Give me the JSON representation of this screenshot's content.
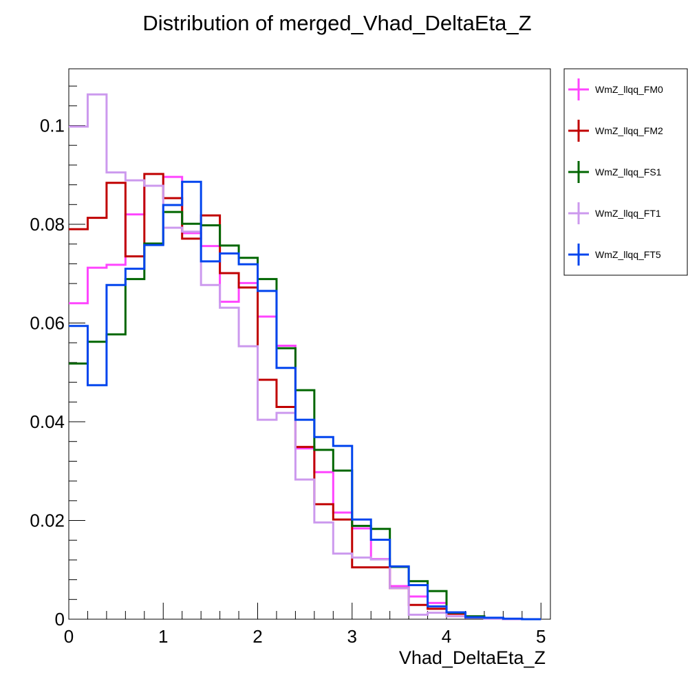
{
  "chart_data": {
    "type": "step",
    "title": "Distribution of merged_Vhad_DeltaEta_Z",
    "xlabel": "Vhad_DeltaEta_Z",
    "ylabel": "",
    "xlim": [
      0,
      5.1
    ],
    "ylim": [
      0,
      0.1115
    ],
    "x_ticks": [
      0,
      1,
      2,
      3,
      4,
      5
    ],
    "y_ticks": [
      0,
      0.02,
      0.04,
      0.06,
      0.08,
      0.1
    ],
    "x_tick_labels": [
      "0",
      "1",
      "2",
      "3",
      "4",
      "5"
    ],
    "y_tick_labels": [
      "0",
      "0.02",
      "0.04",
      "0.06",
      "0.08",
      "0.1"
    ],
    "bin_edges": [
      0,
      0.2,
      0.4,
      0.6,
      0.8,
      1.0,
      1.2,
      1.4,
      1.6,
      1.8,
      2.0,
      2.2,
      2.4,
      2.6,
      2.8,
      3.0,
      3.2,
      3.4,
      3.6,
      3.8,
      4.0,
      4.2,
      4.4,
      4.6,
      4.8,
      5.0
    ],
    "grid": false,
    "legend_position": "right",
    "series": [
      {
        "name": "WmZ_llqq_FM0",
        "color": "#ff44ff",
        "values": [
          0.064,
          0.0712,
          0.0718,
          0.082,
          0.0878,
          0.0896,
          0.0782,
          0.0756,
          0.0643,
          0.0681,
          0.0613,
          0.0554,
          0.0346,
          0.0298,
          0.0216,
          0.0184,
          0.0122,
          0.0067,
          0.0046,
          0.0033,
          0.0011,
          0.0005,
          0.0002,
          0.0,
          0.0
        ]
      },
      {
        "name": "WmZ_llqq_FM2",
        "color": "#c00000",
        "values": [
          0.079,
          0.0813,
          0.0884,
          0.0735,
          0.0902,
          0.0853,
          0.0771,
          0.0818,
          0.0701,
          0.0672,
          0.0485,
          0.043,
          0.0349,
          0.0233,
          0.0202,
          0.0105,
          0.0105,
          0.0063,
          0.0029,
          0.0021,
          0.0011,
          0.0004,
          0.0002,
          0.0,
          0.0
        ]
      },
      {
        "name": "WmZ_llqq_FS1",
        "color": "#006600",
        "values": [
          0.0518,
          0.0562,
          0.0577,
          0.0689,
          0.0761,
          0.0825,
          0.0801,
          0.0798,
          0.0757,
          0.0732,
          0.0689,
          0.0549,
          0.0464,
          0.0343,
          0.0301,
          0.0189,
          0.0183,
          0.0106,
          0.0077,
          0.0057,
          0.0013,
          0.0006,
          0.0002,
          0.0,
          0.0
        ]
      },
      {
        "name": "WmZ_llqq_FT1",
        "color": "#cc99ee",
        "values": [
          0.0998,
          0.1063,
          0.0905,
          0.0889,
          0.0878,
          0.0793,
          0.0785,
          0.0677,
          0.0631,
          0.0553,
          0.0404,
          0.0418,
          0.0283,
          0.0196,
          0.0133,
          0.0125,
          0.0121,
          0.0063,
          0.0009,
          0.0013,
          0.0006,
          0.0003,
          0.0001,
          0.0,
          0.0
        ]
      },
      {
        "name": "WmZ_llqq_FT5",
        "color": "#0044ee",
        "values": [
          0.0594,
          0.0474,
          0.0677,
          0.071,
          0.0758,
          0.0839,
          0.0886,
          0.0725,
          0.0741,
          0.0719,
          0.0665,
          0.0509,
          0.0404,
          0.0369,
          0.0351,
          0.0202,
          0.0161,
          0.0107,
          0.0069,
          0.0026,
          0.0014,
          0.0004,
          0.0003,
          0.0001,
          0.0
        ]
      }
    ]
  }
}
